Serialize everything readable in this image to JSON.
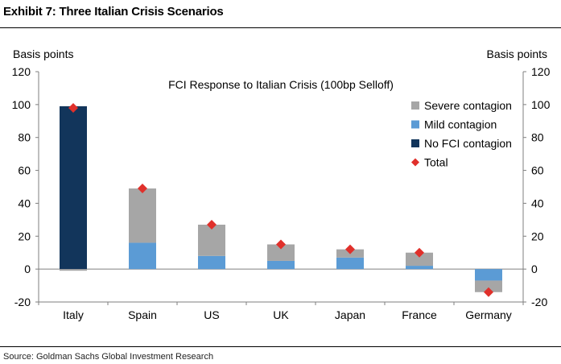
{
  "header": {
    "title": "Exhibit 7: Three Italian Crisis Scenarios"
  },
  "footer": {
    "source": "Source: Goldman Sachs Global Investment Research"
  },
  "colors": {
    "severe": "#a6a6a6",
    "mild": "#5b9bd5",
    "none": "#12355b",
    "total": "#e0302b",
    "axis": "#7f7f7f"
  },
  "chart_data": {
    "type": "bar",
    "stacked": true,
    "title": "FCI Response to Italian Crisis (100bp Selloff)",
    "ylabel_left": "Basis points",
    "ylabel_right": "Basis points",
    "ylim": [
      -20,
      120
    ],
    "yticks": [
      -20,
      0,
      20,
      40,
      60,
      80,
      100,
      120
    ],
    "categories": [
      "Italy",
      "Spain",
      "US",
      "UK",
      "Japan",
      "France",
      "Germany"
    ],
    "series": [
      {
        "name": "No FCI contagion",
        "key": "none",
        "values": [
          99,
          0,
          0,
          0,
          0,
          0,
          0
        ]
      },
      {
        "name": "Mild contagion",
        "key": "mild",
        "values": [
          0,
          16,
          8,
          5,
          7,
          2,
          -7
        ]
      },
      {
        "name": "Severe contagion",
        "key": "severe",
        "values": [
          -1,
          33,
          19,
          10,
          5,
          8,
          -7
        ]
      }
    ],
    "total": {
      "name": "Total",
      "values": [
        98,
        49,
        27,
        15,
        12,
        10,
        -14
      ]
    },
    "legend": [
      {
        "label": "Severe contagion",
        "key": "severe",
        "marker": "square"
      },
      {
        "label": "Mild contagion",
        "key": "mild",
        "marker": "square"
      },
      {
        "label": "No FCI contagion",
        "key": "none",
        "marker": "square"
      },
      {
        "label": "Total",
        "key": "total",
        "marker": "diamond"
      }
    ]
  }
}
